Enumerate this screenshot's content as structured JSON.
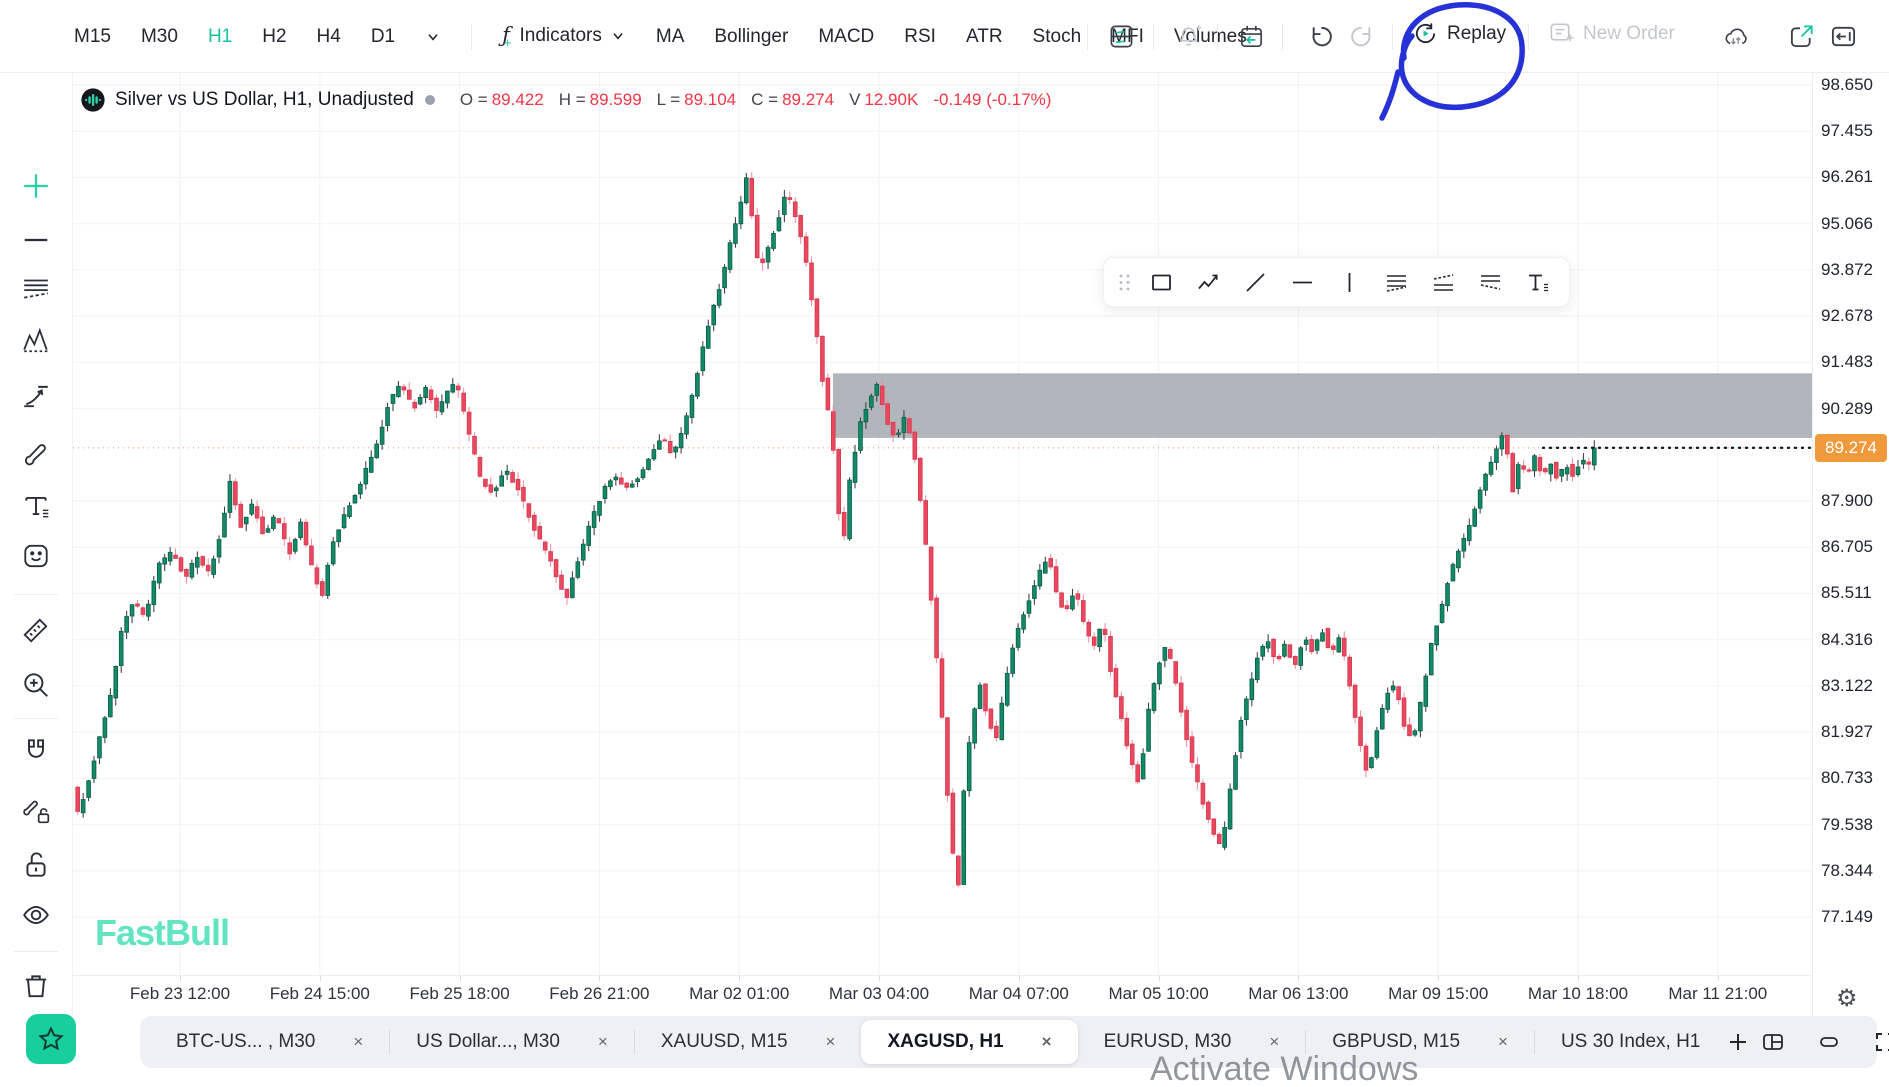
{
  "header": {
    "timeframes": [
      {
        "label": "M15",
        "active": false
      },
      {
        "label": "M30",
        "active": false
      },
      {
        "label": "H1",
        "active": true
      },
      {
        "label": "H2",
        "active": false
      },
      {
        "label": "H4",
        "active": false
      },
      {
        "label": "D1",
        "active": false
      }
    ],
    "indicators_label": "Indicators",
    "indicator_shortcuts": [
      "MA",
      "Bollinger",
      "MACD",
      "RSI",
      "ATR",
      "Stoch",
      "MFI",
      "Volumes"
    ],
    "replay_label": "Replay",
    "new_order_label": "New Order",
    "icon_names": [
      "layout-template-icon",
      "alert-bell-plus-icon",
      "economic-calendar-icon",
      "undo-icon",
      "redo-icon",
      "replay-icon",
      "new-order-icon",
      "cloud-sync-icon",
      "external-link-icon",
      "collapse-panel-icon"
    ]
  },
  "legend": {
    "title": "Silver vs US Dollar, H1, Unadjusted",
    "items": [
      {
        "label": "O =",
        "value": "89.422"
      },
      {
        "label": "H =",
        "value": "89.599"
      },
      {
        "label": "L =",
        "value": "89.104"
      },
      {
        "label": "C =",
        "value": "89.274"
      },
      {
        "label": "V",
        "value": "12.90K"
      }
    ],
    "change": "-0.149 (-0.17%)"
  },
  "sidebar_tools": [
    "crosshair",
    "trend-line",
    "fib-lines",
    "pattern",
    "projection",
    "brush",
    "text",
    "emoji",
    "ruler",
    "zoom-in",
    "magnet",
    "lock-drawings",
    "unlock",
    "hide-drawings",
    "remove-drawings"
  ],
  "floating_toolbar_tools": [
    "drag-handle",
    "rectangle",
    "polyline",
    "diagonal-line",
    "horizontal-line",
    "vertical-line",
    "fib-channel",
    "trend-channel",
    "disjoint-channel",
    "text-note"
  ],
  "chart_data": {
    "type": "candlestick",
    "symbol_title": "Silver vs US Dollar, H1, Unadjusted",
    "ohlc": {
      "open": 89.422,
      "high": 89.599,
      "low": 89.104,
      "close": 89.274,
      "volume": "12.90K",
      "change": "-0.149",
      "change_pct": "-0.17%"
    },
    "last_price": 89.274,
    "colors": {
      "up_body": "#138a67",
      "up_border": "#0c5c45",
      "up_wick": "#30343c",
      "down_body": "#e8495f",
      "down_border": "#d63850",
      "down_wick": "#f2899b",
      "zone": "#a9aeb5",
      "grid": "#f1f2f5",
      "last_price_badge": "#f09a3b",
      "prev_close_line": "#ff8a65"
    },
    "y_ticks": [
      98.65,
      97.455,
      96.261,
      95.066,
      93.872,
      92.678,
      91.483,
      90.289,
      87.9,
      86.705,
      85.511,
      84.316,
      83.122,
      81.927,
      80.733,
      79.538,
      78.344,
      77.149
    ],
    "x_ticks": [
      "Feb 23 12:00",
      "Feb 24 15:00",
      "Feb 25 18:00",
      "Feb 26 21:00",
      "Mar 02 01:00",
      "Mar 03 04:00",
      "Mar 04 07:00",
      "Mar 05 10:00",
      "Mar 06 13:00",
      "Mar 09 15:00",
      "Mar 10 18:00",
      "Mar 11 21:00"
    ],
    "supply_zone": {
      "price_top": 91.2,
      "price_bottom": 89.53,
      "start_frac": 0.498
    },
    "candle_count": 280,
    "price_path": [
      [
        0.0,
        80.5
      ],
      [
        0.004,
        79.8
      ],
      [
        0.01,
        80.6
      ],
      [
        0.018,
        81.8
      ],
      [
        0.026,
        83.0
      ],
      [
        0.032,
        84.5
      ],
      [
        0.04,
        85.3
      ],
      [
        0.048,
        84.9
      ],
      [
        0.056,
        86.2
      ],
      [
        0.066,
        86.6
      ],
      [
        0.074,
        85.9
      ],
      [
        0.082,
        86.5
      ],
      [
        0.09,
        86.0
      ],
      [
        0.098,
        87.2
      ],
      [
        0.104,
        88.5
      ],
      [
        0.11,
        87.2
      ],
      [
        0.118,
        87.8
      ],
      [
        0.126,
        87.0
      ],
      [
        0.134,
        87.6
      ],
      [
        0.142,
        86.5
      ],
      [
        0.15,
        87.3
      ],
      [
        0.158,
        86.1
      ],
      [
        0.164,
        85.4
      ],
      [
        0.17,
        86.7
      ],
      [
        0.178,
        87.5
      ],
      [
        0.186,
        88.1
      ],
      [
        0.194,
        88.8
      ],
      [
        0.202,
        89.6
      ],
      [
        0.208,
        90.5
      ],
      [
        0.216,
        90.9
      ],
      [
        0.224,
        90.3
      ],
      [
        0.232,
        90.8
      ],
      [
        0.24,
        90.2
      ],
      [
        0.246,
        90.7
      ],
      [
        0.252,
        91.0
      ],
      [
        0.26,
        89.7
      ],
      [
        0.268,
        88.5
      ],
      [
        0.276,
        88.1
      ],
      [
        0.284,
        88.7
      ],
      [
        0.292,
        88.3
      ],
      [
        0.3,
        87.5
      ],
      [
        0.308,
        86.8
      ],
      [
        0.316,
        86.2
      ],
      [
        0.324,
        85.3
      ],
      [
        0.332,
        86.3
      ],
      [
        0.34,
        87.3
      ],
      [
        0.348,
        88.1
      ],
      [
        0.356,
        88.6
      ],
      [
        0.364,
        88.2
      ],
      [
        0.372,
        88.5
      ],
      [
        0.38,
        89.1
      ],
      [
        0.388,
        89.6
      ],
      [
        0.394,
        89.0
      ],
      [
        0.402,
        89.8
      ],
      [
        0.41,
        91.1
      ],
      [
        0.418,
        92.5
      ],
      [
        0.426,
        93.5
      ],
      [
        0.432,
        94.5
      ],
      [
        0.438,
        95.4
      ],
      [
        0.443,
        96.3
      ],
      [
        0.447,
        95.1
      ],
      [
        0.451,
        93.9
      ],
      [
        0.457,
        94.4
      ],
      [
        0.463,
        95.1
      ],
      [
        0.469,
        95.9
      ],
      [
        0.475,
        95.3
      ],
      [
        0.481,
        94.4
      ],
      [
        0.487,
        92.8
      ],
      [
        0.493,
        91.0
      ],
      [
        0.499,
        89.7
      ],
      [
        0.503,
        87.7
      ],
      [
        0.507,
        86.9
      ],
      [
        0.511,
        88.5
      ],
      [
        0.517,
        89.8
      ],
      [
        0.523,
        90.5
      ],
      [
        0.529,
        90.9
      ],
      [
        0.535,
        90.0
      ],
      [
        0.541,
        89.4
      ],
      [
        0.547,
        90.1
      ],
      [
        0.553,
        89.2
      ],
      [
        0.559,
        87.4
      ],
      [
        0.565,
        85.1
      ],
      [
        0.571,
        82.5
      ],
      [
        0.575,
        80.3
      ],
      [
        0.579,
        78.6
      ],
      [
        0.582,
        77.9
      ],
      [
        0.586,
        80.6
      ],
      [
        0.591,
        82.2
      ],
      [
        0.596,
        83.2
      ],
      [
        0.601,
        82.3
      ],
      [
        0.607,
        81.7
      ],
      [
        0.613,
        83.2
      ],
      [
        0.619,
        84.3
      ],
      [
        0.627,
        85.2
      ],
      [
        0.635,
        86.0
      ],
      [
        0.641,
        86.5
      ],
      [
        0.647,
        85.4
      ],
      [
        0.653,
        85.0
      ],
      [
        0.659,
        85.7
      ],
      [
        0.665,
        84.6
      ],
      [
        0.671,
        84.1
      ],
      [
        0.677,
        84.8
      ],
      [
        0.683,
        83.3
      ],
      [
        0.689,
        82.3
      ],
      [
        0.695,
        81.2
      ],
      [
        0.701,
        80.6
      ],
      [
        0.707,
        82.5
      ],
      [
        0.713,
        83.6
      ],
      [
        0.719,
        84.2
      ],
      [
        0.725,
        83.2
      ],
      [
        0.731,
        82.0
      ],
      [
        0.737,
        80.9
      ],
      [
        0.743,
        80.1
      ],
      [
        0.749,
        79.3
      ],
      [
        0.755,
        78.9
      ],
      [
        0.761,
        80.5
      ],
      [
        0.767,
        82.1
      ],
      [
        0.773,
        83.0
      ],
      [
        0.779,
        83.9
      ],
      [
        0.785,
        84.4
      ],
      [
        0.791,
        83.7
      ],
      [
        0.797,
        84.2
      ],
      [
        0.803,
        83.6
      ],
      [
        0.809,
        84.4
      ],
      [
        0.815,
        84.0
      ],
      [
        0.821,
        84.6
      ],
      [
        0.827,
        83.9
      ],
      [
        0.833,
        84.5
      ],
      [
        0.839,
        83.2
      ],
      [
        0.845,
        81.8
      ],
      [
        0.851,
        80.8
      ],
      [
        0.857,
        82.0
      ],
      [
        0.863,
        82.9
      ],
      [
        0.869,
        83.2
      ],
      [
        0.875,
        82.1
      ],
      [
        0.881,
        81.7
      ],
      [
        0.887,
        82.9
      ],
      [
        0.893,
        84.2
      ],
      [
        0.899,
        85.1
      ],
      [
        0.905,
        86.0
      ],
      [
        0.911,
        86.6
      ],
      [
        0.917,
        87.2
      ],
      [
        0.923,
        87.9
      ],
      [
        0.929,
        88.6
      ],
      [
        0.935,
        89.2
      ],
      [
        0.941,
        89.7
      ],
      [
        0.946,
        88.1
      ],
      [
        0.951,
        89.0
      ],
      [
        0.956,
        88.5
      ],
      [
        0.961,
        89.1
      ],
      [
        0.966,
        88.5
      ],
      [
        0.971,
        88.9
      ],
      [
        0.976,
        88.4
      ],
      [
        0.981,
        88.9
      ],
      [
        0.986,
        88.5
      ],
      [
        0.991,
        89.0
      ],
      [
        0.996,
        88.8
      ],
      [
        1.0,
        89.274
      ]
    ]
  },
  "price_axis": {
    "current_price_label": "89.274"
  },
  "tab_bar": {
    "tabs": [
      {
        "label": "BTC-US... , M30",
        "active": false,
        "closable": true
      },
      {
        "label": "US Dollar..., M30",
        "active": false,
        "closable": true
      },
      {
        "label": "XAUUSD, M15",
        "active": false,
        "closable": true
      },
      {
        "label": "XAGUSD, H1",
        "active": true,
        "closable": true
      },
      {
        "label": "EURUSD, M30",
        "active": false,
        "closable": true
      },
      {
        "label": "GBPUSD, M15",
        "active": false,
        "closable": true
      },
      {
        "label": "US 30 Index, H1",
        "active": false,
        "closable": false
      }
    ],
    "icon_names": [
      "add-chart-icon",
      "layout-grid-icon",
      "minimize-window-icon",
      "fullscreen-icon"
    ]
  },
  "watermark_logo": "FastBull",
  "os_watermark": "Activate Windows",
  "annotation": {
    "shape": "hand-drawn-circle",
    "color": "#2632d6",
    "target": "replay-button"
  }
}
